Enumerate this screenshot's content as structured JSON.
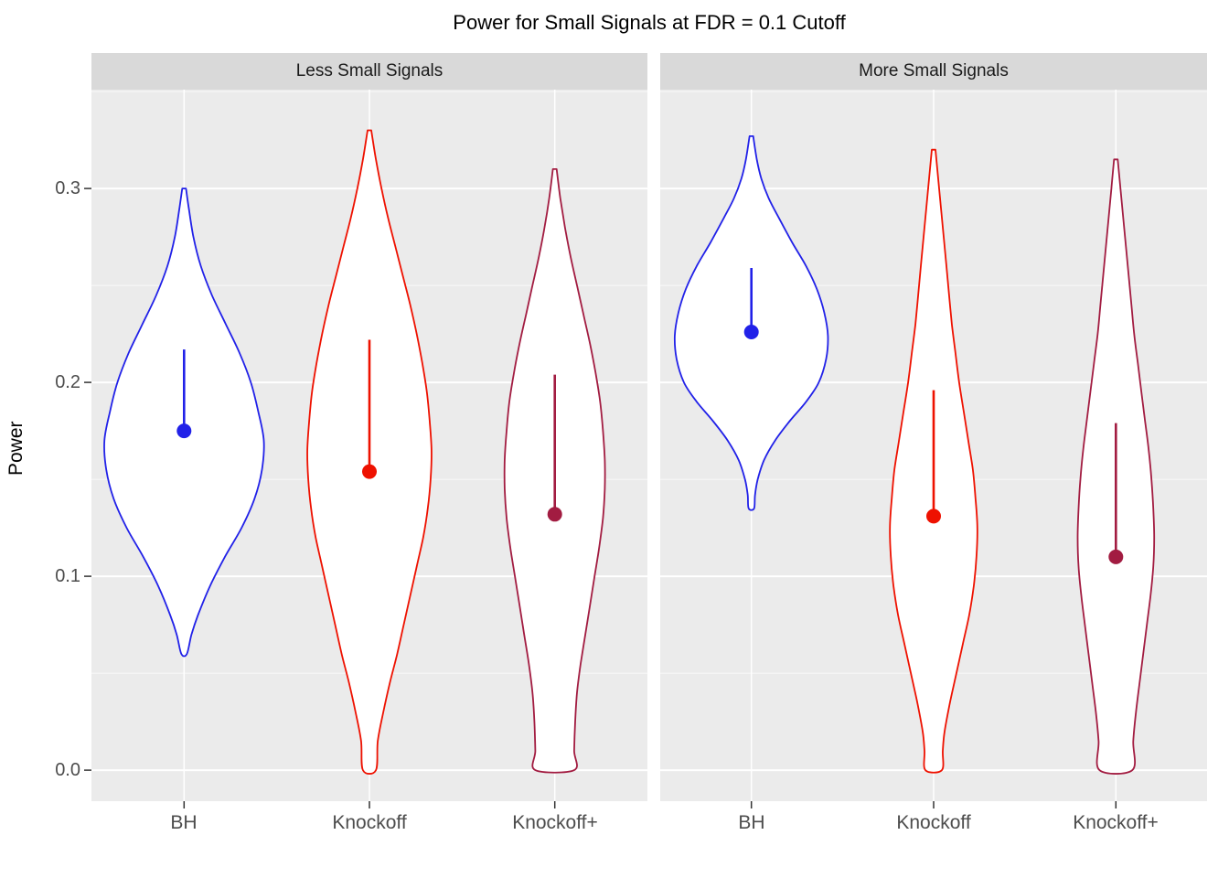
{
  "chart_data": {
    "type": "violin",
    "title": "Power for Small Signals at FDR = 0.1 Cutoff",
    "ylabel": "Power",
    "ylim": [
      -0.016,
      0.351
    ],
    "y_ticks": [
      0.0,
      0.1,
      0.2,
      0.3
    ],
    "y_tick_labels": [
      "0.0",
      "0.1",
      "0.2",
      "0.3"
    ],
    "y_minor_ticks": [
      0.05,
      0.15,
      0.25,
      0.35
    ],
    "categories": [
      "BH",
      "Knockoff",
      "Knockoff+"
    ],
    "panel_bg": "#EBEBEB",
    "strip_bg": "#D9D9D9",
    "grid_color": "#FFFFFF",
    "tick_color": "#333333",
    "violin_fill": "#FFFFFF",
    "facets": [
      {
        "label": "Less Small Signals",
        "violins": [
          {
            "category": "BH",
            "color": "#2121E8",
            "range": [
              0.06,
              0.3
            ],
            "point": 0.175,
            "segment_top": 0.217,
            "shape": [
              [
                0.3,
                0.02
              ],
              [
                0.29,
                0.05
              ],
              [
                0.275,
                0.1
              ],
              [
                0.26,
                0.18
              ],
              [
                0.245,
                0.3
              ],
              [
                0.23,
                0.45
              ],
              [
                0.215,
                0.6
              ],
              [
                0.2,
                0.72
              ],
              [
                0.185,
                0.8
              ],
              [
                0.17,
                0.86
              ],
              [
                0.155,
                0.84
              ],
              [
                0.14,
                0.76
              ],
              [
                0.125,
                0.62
              ],
              [
                0.11,
                0.44
              ],
              [
                0.095,
                0.28
              ],
              [
                0.08,
                0.15
              ],
              [
                0.07,
                0.08
              ],
              [
                0.06,
                0.03
              ]
            ]
          },
          {
            "category": "Knockoff",
            "color": "#EE1100",
            "range": [
              0.0,
              0.33
            ],
            "point": 0.154,
            "segment_top": 0.222,
            "shape": [
              [
                0.33,
                0.02
              ],
              [
                0.315,
                0.07
              ],
              [
                0.3,
                0.13
              ],
              [
                0.285,
                0.2
              ],
              [
                0.27,
                0.28
              ],
              [
                0.255,
                0.36
              ],
              [
                0.24,
                0.44
              ],
              [
                0.225,
                0.51
              ],
              [
                0.21,
                0.57
              ],
              [
                0.195,
                0.62
              ],
              [
                0.18,
                0.65
              ],
              [
                0.165,
                0.67
              ],
              [
                0.15,
                0.66
              ],
              [
                0.135,
                0.63
              ],
              [
                0.12,
                0.58
              ],
              [
                0.105,
                0.51
              ],
              [
                0.09,
                0.44
              ],
              [
                0.075,
                0.37
              ],
              [
                0.06,
                0.3
              ],
              [
                0.045,
                0.22
              ],
              [
                0.03,
                0.15
              ],
              [
                0.015,
                0.09
              ],
              [
                0.0,
                0.07
              ]
            ]
          },
          {
            "category": "Knockoff+",
            "color": "#A21C41",
            "range": [
              0.0,
              0.31
            ],
            "point": 0.132,
            "segment_top": 0.204,
            "shape": [
              [
                0.31,
                0.02
              ],
              [
                0.295,
                0.06
              ],
              [
                0.28,
                0.11
              ],
              [
                0.265,
                0.17
              ],
              [
                0.25,
                0.24
              ],
              [
                0.235,
                0.31
              ],
              [
                0.22,
                0.38
              ],
              [
                0.205,
                0.44
              ],
              [
                0.19,
                0.49
              ],
              [
                0.175,
                0.52
              ],
              [
                0.16,
                0.54
              ],
              [
                0.145,
                0.54
              ],
              [
                0.13,
                0.52
              ],
              [
                0.115,
                0.48
              ],
              [
                0.1,
                0.43
              ],
              [
                0.085,
                0.38
              ],
              [
                0.07,
                0.33
              ],
              [
                0.055,
                0.28
              ],
              [
                0.04,
                0.24
              ],
              [
                0.025,
                0.22
              ],
              [
                0.01,
                0.21
              ],
              [
                0.0,
                0.21
              ]
            ]
          }
        ]
      },
      {
        "label": "More Small Signals",
        "violins": [
          {
            "category": "BH",
            "color": "#2121E8",
            "range": [
              0.135,
              0.327
            ],
            "point": 0.226,
            "segment_top": 0.259,
            "shape": [
              [
                0.327,
                0.02
              ],
              [
                0.315,
                0.06
              ],
              [
                0.305,
                0.11
              ],
              [
                0.295,
                0.19
              ],
              [
                0.285,
                0.3
              ],
              [
                0.272,
                0.45
              ],
              [
                0.26,
                0.6
              ],
              [
                0.248,
                0.72
              ],
              [
                0.236,
                0.8
              ],
              [
                0.224,
                0.84
              ],
              [
                0.212,
                0.82
              ],
              [
                0.2,
                0.74
              ],
              [
                0.19,
                0.6
              ],
              [
                0.18,
                0.42
              ],
              [
                0.17,
                0.26
              ],
              [
                0.16,
                0.14
              ],
              [
                0.15,
                0.07
              ],
              [
                0.142,
                0.04
              ],
              [
                0.135,
                0.03
              ]
            ]
          },
          {
            "category": "Knockoff",
            "color": "#EE1100",
            "range": [
              0.0,
              0.32
            ],
            "point": 0.131,
            "segment_top": 0.196,
            "shape": [
              [
                0.32,
                0.02
              ],
              [
                0.305,
                0.05
              ],
              [
                0.29,
                0.08
              ],
              [
                0.275,
                0.11
              ],
              [
                0.26,
                0.14
              ],
              [
                0.245,
                0.17
              ],
              [
                0.23,
                0.2
              ],
              [
                0.215,
                0.24
              ],
              [
                0.2,
                0.28
              ],
              [
                0.185,
                0.33
              ],
              [
                0.17,
                0.38
              ],
              [
                0.155,
                0.43
              ],
              [
                0.14,
                0.46
              ],
              [
                0.125,
                0.48
              ],
              [
                0.11,
                0.47
              ],
              [
                0.095,
                0.44
              ],
              [
                0.08,
                0.39
              ],
              [
                0.065,
                0.32
              ],
              [
                0.05,
                0.25
              ],
              [
                0.035,
                0.18
              ],
              [
                0.02,
                0.12
              ],
              [
                0.01,
                0.1
              ],
              [
                0.0,
                0.09
              ]
            ]
          },
          {
            "category": "Knockoff+",
            "color": "#A21C41",
            "range": [
              0.0,
              0.315
            ],
            "point": 0.11,
            "segment_top": 0.179,
            "shape": [
              [
                0.315,
                0.02
              ],
              [
                0.3,
                0.05
              ],
              [
                0.285,
                0.08
              ],
              [
                0.27,
                0.11
              ],
              [
                0.255,
                0.14
              ],
              [
                0.24,
                0.17
              ],
              [
                0.225,
                0.2
              ],
              [
                0.21,
                0.24
              ],
              [
                0.195,
                0.28
              ],
              [
                0.18,
                0.32
              ],
              [
                0.165,
                0.36
              ],
              [
                0.15,
                0.39
              ],
              [
                0.135,
                0.41
              ],
              [
                0.12,
                0.42
              ],
              [
                0.105,
                0.41
              ],
              [
                0.09,
                0.38
              ],
              [
                0.075,
                0.34
              ],
              [
                0.06,
                0.3
              ],
              [
                0.045,
                0.26
              ],
              [
                0.03,
                0.22
              ],
              [
                0.015,
                0.19
              ],
              [
                0.0,
                0.18
              ]
            ]
          }
        ]
      }
    ]
  }
}
